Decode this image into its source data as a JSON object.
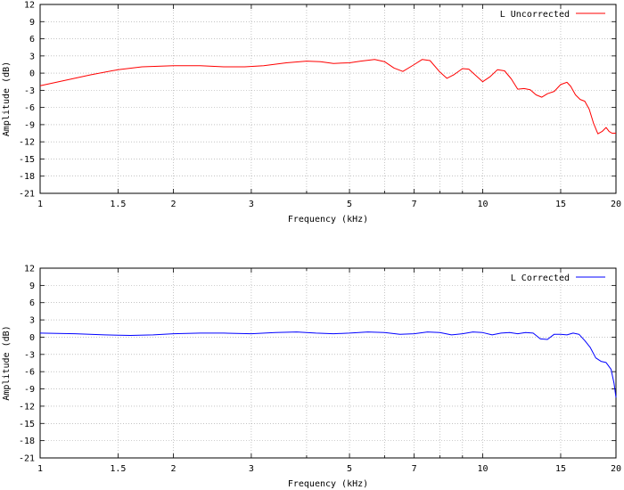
{
  "chart_data": [
    {
      "type": "line",
      "title": "",
      "xlabel": "Frequency (kHz)",
      "ylabel": "Amplitude (dB)",
      "x_scale": "log",
      "xlim": [
        1,
        20
      ],
      "ylim": [
        -21,
        12
      ],
      "grid": true,
      "legend_position": "top-right",
      "x_ticks": [
        1,
        1.5,
        2,
        3,
        5,
        7,
        10,
        15,
        20
      ],
      "x_tick_labels": [
        "1",
        "1.5",
        "2",
        "3",
        "5",
        "7",
        "10",
        "15",
        "20"
      ],
      "y_ticks": [
        12,
        9,
        6,
        3,
        0,
        -3,
        -6,
        -9,
        -12,
        -15,
        -18,
        -21
      ],
      "y_tick_labels": [
        "12",
        "9",
        "6",
        "3",
        "0",
        "-3",
        "-6",
        "-9",
        "-12",
        "-15",
        "-18",
        "-21"
      ],
      "series": [
        {
          "name": "L Uncorrected",
          "color": "#ff0000",
          "x": [
            1,
            1.15,
            1.3,
            1.5,
            1.7,
            2.0,
            2.3,
            2.6,
            2.9,
            3.2,
            3.6,
            4.0,
            4.3,
            4.6,
            5.0,
            5.3,
            5.7,
            6.0,
            6.3,
            6.6,
            7.0,
            7.3,
            7.6,
            8.0,
            8.3,
            8.6,
            9.0,
            9.3,
            9.7,
            10.0,
            10.4,
            10.8,
            11.2,
            11.6,
            12.0,
            12.4,
            12.8,
            13.2,
            13.6,
            14.0,
            14.5,
            15.0,
            15.5,
            15.8,
            16.2,
            16.6,
            17.0,
            17.4,
            17.8,
            18.2,
            18.6,
            19.0,
            19.3,
            19.6,
            20.0
          ],
          "y": [
            -2.2,
            -1.2,
            -0.3,
            0.6,
            1.1,
            1.3,
            1.3,
            1.1,
            1.1,
            1.3,
            1.8,
            2.1,
            2.0,
            1.7,
            1.8,
            2.1,
            2.4,
            2.0,
            0.9,
            0.3,
            1.5,
            2.4,
            2.2,
            0.2,
            -0.9,
            -0.3,
            0.8,
            0.7,
            -0.6,
            -1.5,
            -0.6,
            0.6,
            0.4,
            -1.0,
            -2.8,
            -2.7,
            -2.9,
            -3.8,
            -4.2,
            -3.6,
            -3.2,
            -2.0,
            -1.6,
            -2.3,
            -3.8,
            -4.6,
            -4.9,
            -6.3,
            -8.8,
            -10.6,
            -10.2,
            -9.5,
            -10.2,
            -10.5,
            -10.5
          ]
        }
      ]
    },
    {
      "type": "line",
      "title": "",
      "xlabel": "Frequency (kHz)",
      "ylabel": "Amplitude (dB)",
      "x_scale": "log",
      "xlim": [
        1,
        20
      ],
      "ylim": [
        -21,
        12
      ],
      "grid": true,
      "legend_position": "top-right",
      "x_ticks": [
        1,
        1.5,
        2,
        3,
        5,
        7,
        10,
        15,
        20
      ],
      "x_tick_labels": [
        "1",
        "1.5",
        "2",
        "3",
        "5",
        "7",
        "10",
        "15",
        "20"
      ],
      "y_ticks": [
        12,
        9,
        6,
        3,
        0,
        -3,
        -6,
        -9,
        -12,
        -15,
        -18,
        -21
      ],
      "y_tick_labels": [
        "12",
        "9",
        "6",
        "3",
        "0",
        "-3",
        "-6",
        "-9",
        "-12",
        "-15",
        "-18",
        "-21"
      ],
      "series": [
        {
          "name": "L Corrected",
          "color": "#0000ff",
          "x": [
            1,
            1.2,
            1.4,
            1.6,
            1.8,
            2.0,
            2.3,
            2.6,
            3.0,
            3.4,
            3.8,
            4.2,
            4.6,
            5.0,
            5.5,
            6.0,
            6.5,
            7.0,
            7.5,
            8.0,
            8.5,
            9.0,
            9.5,
            10.0,
            10.5,
            11.0,
            11.5,
            12.0,
            12.5,
            13.0,
            13.5,
            14.0,
            14.5,
            15.0,
            15.5,
            16.0,
            16.5,
            17.0,
            17.5,
            18.0,
            18.5,
            19.0,
            19.5,
            19.8,
            20.0
          ],
          "y": [
            0.7,
            0.6,
            0.4,
            0.3,
            0.4,
            0.6,
            0.7,
            0.7,
            0.6,
            0.8,
            0.9,
            0.7,
            0.6,
            0.7,
            0.9,
            0.8,
            0.5,
            0.6,
            0.9,
            0.8,
            0.4,
            0.6,
            0.9,
            0.8,
            0.4,
            0.7,
            0.8,
            0.6,
            0.8,
            0.7,
            -0.3,
            -0.4,
            0.5,
            0.5,
            0.4,
            0.7,
            0.5,
            -0.6,
            -1.8,
            -3.6,
            -4.2,
            -4.4,
            -5.6,
            -8.0,
            -10.5
          ]
        }
      ]
    }
  ]
}
